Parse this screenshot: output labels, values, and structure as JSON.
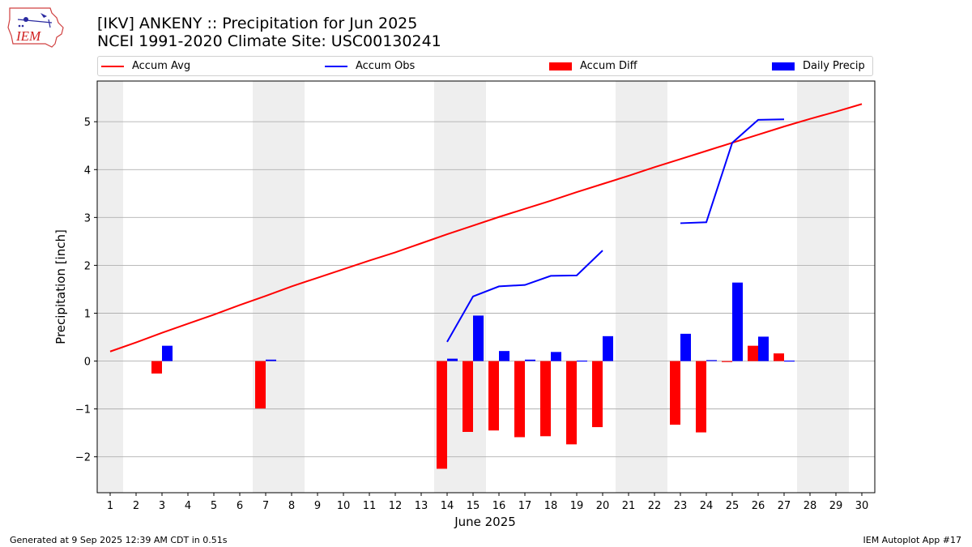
{
  "header": {
    "title_line1": "[IKV] ANKENY :: Precipitation for Jun 2025",
    "title_line2": "NCEI 1991-2020 Climate Site: USC00130241"
  },
  "logo": {
    "text": "IEM"
  },
  "legend": {
    "items": [
      {
        "label": "Accum Avg",
        "kind": "line",
        "color": "#ff0000"
      },
      {
        "label": "Accum Obs",
        "kind": "line",
        "color": "#0000ff"
      },
      {
        "label": "Accum Diff",
        "kind": "patch",
        "color": "#ff0000"
      },
      {
        "label": "Daily Precip",
        "kind": "patch",
        "color": "#0000ff"
      }
    ]
  },
  "footer": {
    "left": "Generated at 9 Sep 2025 12:39 AM CDT in 0.51s",
    "right": "IEM Autoplot App #17"
  },
  "chart_data": {
    "type": "bar",
    "xlabel": "June 2025",
    "ylabel": "Precipitation [inch]",
    "ylim": [
      -2.75,
      5.85
    ],
    "xlim": [
      0.5,
      30.5
    ],
    "yticks": [
      -2,
      -1,
      0,
      1,
      2,
      3,
      4,
      5
    ],
    "ytick_labels": [
      "−2",
      "−1",
      "0",
      "1",
      "2",
      "3",
      "4",
      "5"
    ],
    "days": [
      1,
      2,
      3,
      4,
      5,
      6,
      7,
      8,
      9,
      10,
      11,
      12,
      13,
      14,
      15,
      16,
      17,
      18,
      19,
      20,
      21,
      22,
      23,
      24,
      25,
      26,
      27,
      28,
      29,
      30
    ],
    "weekend_spans": [
      [
        0.5,
        1.5
      ],
      [
        6.5,
        8.5
      ],
      [
        13.5,
        15.5
      ],
      [
        20.5,
        22.5
      ],
      [
        27.5,
        29.5
      ]
    ],
    "grid": "horizontal",
    "legend_position": "top",
    "series": [
      {
        "name": "Accum Avg",
        "type": "line",
        "color": "#ff0000",
        "values": [
          0.2,
          0.39,
          0.59,
          0.78,
          0.97,
          1.17,
          1.36,
          1.56,
          1.74,
          1.92,
          2.1,
          2.27,
          2.46,
          2.65,
          2.83,
          3.01,
          3.18,
          3.35,
          3.53,
          3.7,
          3.87,
          4.05,
          4.22,
          4.39,
          4.56,
          4.73,
          4.9,
          5.06,
          5.21,
          5.37
        ]
      },
      {
        "name": "Accum Obs",
        "type": "line",
        "color": "#0000ff",
        "values": [
          null,
          null,
          null,
          null,
          null,
          null,
          null,
          null,
          null,
          null,
          null,
          null,
          null,
          0.4,
          1.35,
          1.56,
          1.59,
          1.78,
          1.79,
          2.31,
          null,
          null,
          2.88,
          2.9,
          4.56,
          5.04,
          5.05,
          null,
          null,
          null
        ]
      },
      {
        "name": "Accum Diff",
        "type": "bar",
        "color": "#ff0000",
        "values": [
          null,
          null,
          -0.26,
          null,
          null,
          null,
          -0.99,
          null,
          null,
          null,
          null,
          null,
          null,
          -2.25,
          -1.48,
          -1.45,
          -1.59,
          -1.57,
          -1.74,
          -1.38,
          null,
          null,
          -1.33,
          -1.49,
          -0.02,
          0.32,
          0.16,
          null,
          null,
          null
        ]
      },
      {
        "name": "Daily Precip",
        "type": "bar",
        "color": "#0000ff",
        "values": [
          null,
          null,
          0.32,
          null,
          null,
          null,
          0.03,
          null,
          null,
          null,
          null,
          null,
          null,
          0.05,
          0.95,
          0.21,
          0.03,
          0.19,
          0.01,
          0.52,
          null,
          null,
          0.57,
          0.02,
          1.64,
          0.51,
          0.01,
          null,
          null,
          null
        ]
      }
    ]
  }
}
